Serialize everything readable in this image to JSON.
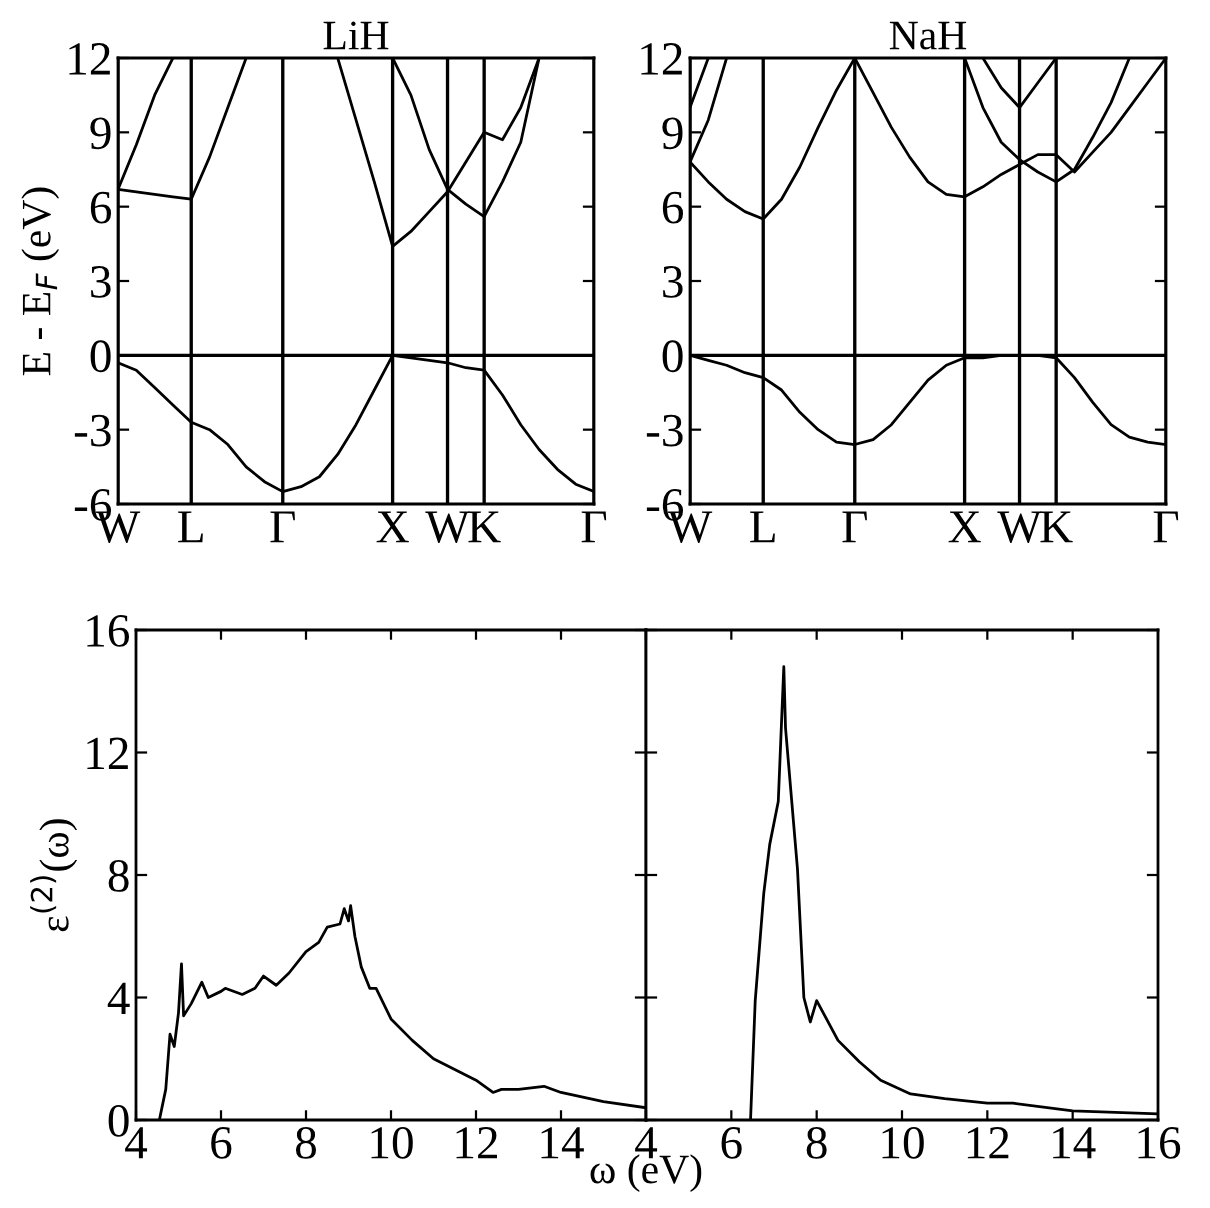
{
  "chart_data": [
    {
      "type": "line",
      "title": "LiH",
      "ylabel": "E - E$_{F}$ (eV)",
      "ylim": [
        -6,
        12
      ],
      "yticks": [
        -6,
        -3,
        0,
        3,
        6,
        9,
        12
      ],
      "grid": "x",
      "categories": [
        "W",
        null,
        null,
        null,
        "L",
        null,
        null,
        null,
        null,
        "Γ",
        null,
        null,
        null,
        null,
        null,
        "X",
        null,
        null,
        "W",
        null,
        "K",
        null,
        null,
        null,
        null,
        null,
        "Γ"
      ],
      "ref_lines": [
        {
          "axis": "y",
          "value": 0,
          "color": "#000000"
        }
      ],
      "series": [
        {
          "color": "#000000",
          "values": [
            -0.3,
            -0.6,
            -1.3,
            -2.0,
            -2.7,
            -3.0,
            -3.6,
            -4.5,
            -5.1,
            -5.5,
            -5.3,
            -4.9,
            -4.0,
            -2.8,
            -1.4,
            0,
            -0.1,
            -0.2,
            -0.3,
            -0.5,
            -0.6,
            -1.6,
            -2.8,
            -3.8,
            -4.6,
            -5.2,
            -5.5
          ]
        },
        {
          "color": "#000000",
          "values": [
            6.7,
            6.6,
            6.5,
            6.4,
            6.3,
            8.0,
            10.0,
            12,
            null,
            null,
            null,
            null,
            null,
            null,
            null,
            null,
            null,
            null,
            null,
            null,
            null,
            null,
            null,
            null,
            null,
            null,
            null
          ]
        },
        {
          "color": "#000000",
          "values": [
            6.7,
            8.5,
            10.5,
            12,
            null,
            null,
            null,
            null,
            null,
            null,
            null,
            null,
            null,
            null,
            null,
            null,
            null,
            null,
            null,
            null,
            null,
            null,
            null,
            null,
            null,
            null,
            null
          ]
        },
        {
          "color": "#000000",
          "values": [
            null,
            null,
            null,
            null,
            null,
            null,
            null,
            null,
            null,
            null,
            null,
            null,
            12,
            9.5,
            7.0,
            4.4,
            5.0,
            5.8,
            6.6,
            7.8,
            9.0,
            8.7,
            10.0,
            12,
            null,
            null,
            null
          ]
        },
        {
          "color": "#000000",
          "values": [
            null,
            null,
            null,
            null,
            null,
            null,
            null,
            null,
            null,
            null,
            null,
            null,
            null,
            null,
            null,
            12,
            10.5,
            8.3,
            6.7,
            6.1,
            5.6,
            7.0,
            8.6,
            12,
            null,
            null,
            null
          ]
        }
      ]
    },
    {
      "type": "line",
      "title": "NaH",
      "ylim": [
        -6,
        12
      ],
      "yticks": [
        -6,
        -3,
        0,
        3,
        6,
        9,
        12
      ],
      "grid": "x",
      "categories": [
        "W",
        null,
        null,
        null,
        "L",
        null,
        null,
        null,
        null,
        "Γ",
        null,
        null,
        null,
        null,
        null,
        "X",
        null,
        null,
        "W",
        null,
        "K",
        null,
        null,
        null,
        null,
        null,
        "Γ"
      ],
      "ref_lines": [
        {
          "axis": "y",
          "value": 0,
          "color": "#000000"
        }
      ],
      "series": [
        {
          "color": "#000000",
          "values": [
            0,
            -0.2,
            -0.4,
            -0.7,
            -0.9,
            -1.4,
            -2.3,
            -3.0,
            -3.5,
            -3.6,
            -3.4,
            -2.8,
            -1.9,
            -1.0,
            -0.4,
            -0.1,
            -0.1,
            0,
            0,
            0,
            -0.1,
            -0.9,
            -1.9,
            -2.8,
            -3.3,
            -3.5,
            -3.6
          ]
        },
        {
          "color": "#000000",
          "values": [
            7.8,
            7.0,
            6.3,
            5.8,
            5.5,
            6.3,
            7.6,
            9.2,
            10.7,
            12,
            null,
            null,
            null,
            null,
            null,
            null,
            null,
            null,
            null,
            null,
            null,
            null,
            null,
            null,
            null,
            null,
            null
          ]
        },
        {
          "color": "#000000",
          "values": [
            null,
            null,
            null,
            null,
            null,
            null,
            null,
            null,
            null,
            12,
            10.6,
            9.2,
            8.0,
            7.0,
            6.5,
            6.4,
            6.8,
            7.3,
            7.7,
            8.1,
            8.1,
            7.4,
            8.2,
            9.0,
            10.0,
            11.0,
            12
          ]
        },
        {
          "color": "#000000",
          "values": [
            null,
            null,
            null,
            null,
            null,
            null,
            null,
            null,
            null,
            null,
            null,
            null,
            null,
            null,
            null,
            12,
            10.0,
            8.6,
            7.9,
            7.4,
            7.0,
            7.5,
            8.8,
            10.2,
            12,
            null,
            null
          ]
        },
        {
          "color": "#000000",
          "values": [
            7.8,
            9.5,
            12,
            null,
            null,
            null,
            null,
            null,
            null,
            null,
            null,
            null,
            null,
            null,
            null,
            null,
            null,
            null,
            null,
            null,
            null,
            null,
            null,
            null,
            null,
            null,
            null
          ]
        },
        {
          "color": "#000000",
          "values": [
            10,
            12,
            null,
            null,
            null,
            null,
            null,
            null,
            null,
            null,
            null,
            null,
            null,
            null,
            null,
            null,
            null,
            null,
            null,
            null,
            null,
            null,
            null,
            null,
            null,
            null,
            null
          ]
        },
        {
          "color": "#000000",
          "values": [
            null,
            null,
            null,
            null,
            null,
            null,
            null,
            null,
            null,
            null,
            null,
            null,
            null,
            null,
            null,
            null,
            12,
            10.8,
            10,
            11,
            12,
            null,
            null,
            null,
            null,
            null,
            null
          ]
        }
      ]
    },
    {
      "type": "line",
      "ylabel": "ε$^{(2)}$(ω)",
      "xlabel": "ω (eV)",
      "xlim": [
        4,
        16
      ],
      "ylim": [
        0,
        16
      ],
      "yticks": [
        0,
        4,
        8,
        12,
        16
      ],
      "xticks": [
        4,
        6,
        8,
        10,
        12,
        14,
        {
          "value": 16,
          "label": null
        }
      ],
      "series": [
        {
          "color": "#000000",
          "x": [
            4.55,
            4.7,
            4.8,
            4.9,
            5.0,
            5.07,
            5.12,
            5.3,
            5.55,
            5.7,
            6.0,
            6.1,
            6.5,
            6.8,
            7.0,
            7.3,
            7.6,
            8.0,
            8.3,
            8.5,
            8.8,
            8.9,
            9.0,
            9.05,
            9.15,
            9.3,
            9.5,
            9.65,
            10,
            10.5,
            11,
            12,
            12.4,
            12.6,
            13.0,
            13.6,
            14,
            15,
            16
          ],
          "values": [
            0,
            1,
            2.8,
            2.4,
            3.5,
            5.1,
            3.4,
            3.8,
            4.5,
            4.0,
            4.2,
            4.3,
            4.1,
            4.3,
            4.7,
            4.4,
            4.8,
            5.5,
            5.8,
            6.3,
            6.4,
            6.9,
            6.5,
            7.0,
            6.0,
            5.0,
            4.3,
            4.3,
            3.3,
            2.6,
            2.0,
            1.3,
            0.9,
            1.0,
            1.0,
            1.1,
            0.9,
            0.6,
            0.4
          ]
        }
      ]
    },
    {
      "type": "line",
      "tick_labels": "x",
      "xlim": [
        4,
        16
      ],
      "ylim": [
        0,
        16
      ],
      "yticks": [
        0,
        4,
        8,
        12,
        16
      ],
      "xticks": [
        4,
        6,
        8,
        10,
        12,
        14,
        16
      ],
      "series": [
        {
          "color": "#000000",
          "x": [
            6.45,
            6.56,
            6.76,
            6.9,
            7.1,
            7.23,
            7.27,
            7.55,
            7.7,
            7.85,
            8.0,
            8.5,
            9,
            9.5,
            10.2,
            11,
            12,
            12.6,
            14,
            16
          ],
          "values": [
            0,
            3.9,
            7.4,
            9.0,
            10.4,
            14.8,
            12.8,
            8.2,
            4.0,
            3.2,
            3.9,
            2.6,
            1.9,
            1.3,
            0.85,
            0.7,
            0.55,
            0.55,
            0.3,
            0.2
          ]
        }
      ]
    }
  ]
}
